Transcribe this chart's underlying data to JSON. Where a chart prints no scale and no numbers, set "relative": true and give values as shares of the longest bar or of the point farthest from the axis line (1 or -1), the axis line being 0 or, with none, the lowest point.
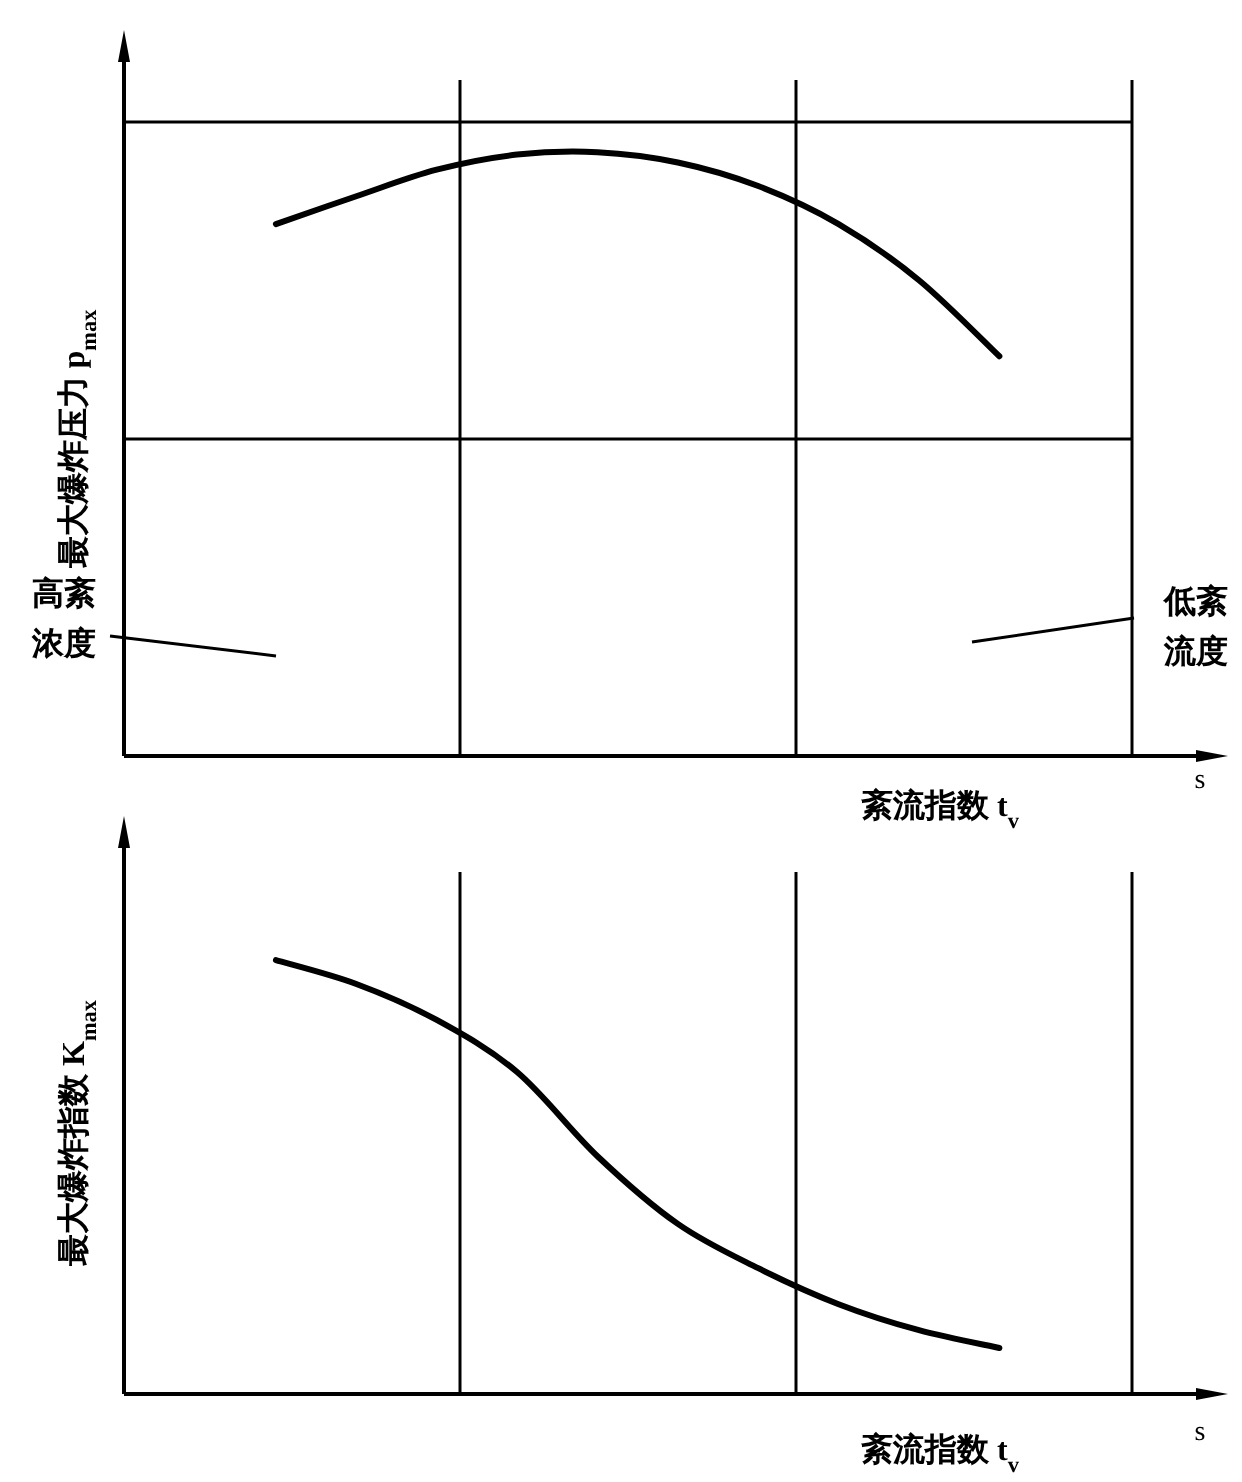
{
  "chart_data": [
    {
      "type": "line",
      "relative": true,
      "categories": [
        null,
        null,
        null,
        null,
        null,
        null,
        null,
        null,
        null,
        null
      ],
      "values": [
        0.881,
        0.927,
        0.971,
        0.996,
        1,
        0.983,
        0.944,
        0.881,
        0.788,
        0.662
      ],
      "color": "#000000",
      "ylabel": "最大爆炸压力 p$_{max}$",
      "xlabel": "紊流指数 t$_{v}$",
      "annotations": [
        "高紊浓度",
        "低紊流度",
        "s"
      ],
      "grid": true
    },
    {
      "type": "line",
      "relative": true,
      "categories": [
        null,
        null,
        null,
        null,
        null,
        null,
        null,
        null,
        null,
        null
      ],
      "values": [
        1,
        0.945,
        0.862,
        0.742,
        0.548,
        0.392,
        0.29,
        0.207,
        0.147,
        0.106
      ],
      "color": "#000000",
      "ylabel": "最大爆炸指数 K$_{max}$",
      "xlabel": "紊流指数 t$_{v}$",
      "annotations": [
        "s"
      ],
      "grid": "x"
    }
  ]
}
